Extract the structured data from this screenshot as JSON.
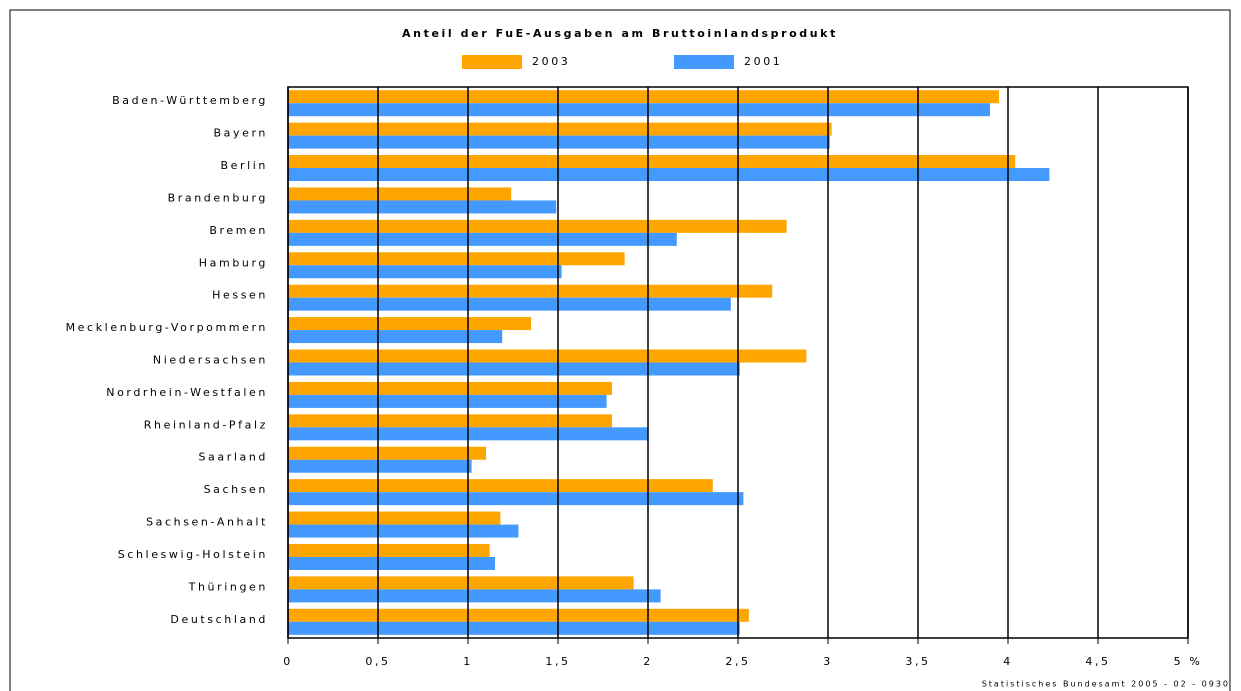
{
  "chart_data": {
    "type": "bar",
    "orientation": "horizontal",
    "title": "Anteil der FuE-Ausgaben am Bruttoinlandsprodukt",
    "categories": [
      "Baden-Württemberg",
      "Bayern",
      "Berlin",
      "Brandenburg",
      "Bremen",
      "Hamburg",
      "Hessen",
      "Mecklenburg-Vorpommern",
      "Niedersachsen",
      "Nordrhein-Westfalen",
      "Rheinland-Pfalz",
      "Saarland",
      "Sachsen",
      "Sachsen-Anhalt",
      "Schleswig-Holstein",
      "Thüringen",
      "Deutschland"
    ],
    "series": [
      {
        "name": "2003",
        "color": "#ffa500",
        "values": [
          3.95,
          3.02,
          4.04,
          1.24,
          2.77,
          1.87,
          2.69,
          1.35,
          2.88,
          1.8,
          1.8,
          1.1,
          2.36,
          1.18,
          1.12,
          1.92,
          2.56
        ]
      },
      {
        "name": "2001",
        "color": "#4499ff",
        "values": [
          3.9,
          3.01,
          4.23,
          1.49,
          2.16,
          1.52,
          2.46,
          1.19,
          2.51,
          1.77,
          2.0,
          1.02,
          2.53,
          1.28,
          1.15,
          2.07,
          2.51
        ]
      }
    ],
    "xlim": [
      0,
      5
    ],
    "xticks": [
      0,
      {
        "value": 0.5,
        "label": "0,5"
      },
      1,
      {
        "value": 1.5,
        "label": "1,5"
      },
      2,
      {
        "value": 2.5,
        "label": "2,5"
      },
      3,
      {
        "value": 3.5,
        "label": "3,5"
      },
      4,
      {
        "value": 4.5,
        "label": "4,5"
      },
      {
        "value": 5,
        "label": "5 %"
      }
    ],
    "grid": true,
    "legend": "top",
    "source": "Statistisches Bundesamt 2005 - 02 - 0930"
  }
}
